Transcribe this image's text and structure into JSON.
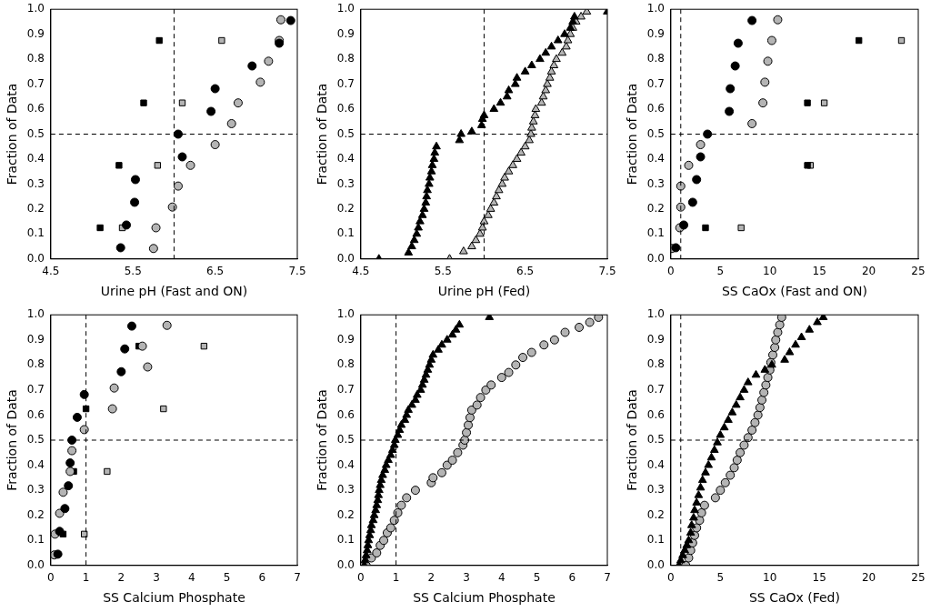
{
  "chart_data": [
    {
      "type": "scatter",
      "x_label": "Urine pH (Fast and ON)",
      "y_label": "Fraction of Data",
      "xlim": [
        4.5,
        7.5
      ],
      "xticks": [
        4.5,
        5.5,
        6.5,
        7.5
      ],
      "ylim": [
        0,
        1
      ],
      "yticks": [
        {
          "value": 0,
          "label": "0.0"
        },
        0.1,
        0.2,
        0.3,
        0.4,
        0.5,
        0.6,
        0.7,
        0.8,
        0.9,
        {
          "value": 1,
          "label": "1.0"
        }
      ],
      "grid": false,
      "reference_lines": [
        {
          "axis": "x",
          "value": 6,
          "line_style": "dashed"
        },
        {
          "axis": "y",
          "value": 0.5,
          "line_style": "dashed"
        }
      ],
      "series": [
        {
          "color": "#000000",
          "marker": "circle",
          "x": [
            5.35,
            5.42,
            5.52,
            5.53,
            6.1,
            6.05,
            6.45,
            6.5,
            6.95,
            7.28,
            7.42
          ],
          "values": [
            0.045,
            0.136,
            0.227,
            0.318,
            0.409,
            0.5,
            0.591,
            0.682,
            0.773,
            0.864,
            0.955
          ]
        },
        {
          "color": "#b4b4b4",
          "marker": "circle",
          "x": [
            5.75,
            5.78,
            5.98,
            6.05,
            6.2,
            6.5,
            6.7,
            6.78,
            7.05,
            7.15,
            7.28,
            7.3
          ],
          "values": [
            0.042,
            0.125,
            0.208,
            0.292,
            0.375,
            0.458,
            0.542,
            0.625,
            0.708,
            0.792,
            0.875,
            0.958
          ]
        },
        {
          "color": "#000000",
          "marker": "square",
          "x": [
            5.1,
            5.33,
            5.63,
            5.82
          ],
          "values": [
            0.125,
            0.375,
            0.625,
            0.875
          ]
        },
        {
          "color": "#b4b4b4",
          "marker": "square",
          "x": [
            5.37,
            5.8,
            6.1,
            6.58
          ],
          "values": [
            0.125,
            0.375,
            0.625,
            0.875
          ]
        }
      ]
    },
    {
      "type": "scatter",
      "x_label": "Urine pH (Fed)",
      "y_label": "Fraction of Data",
      "xlim": [
        4.5,
        7.5
      ],
      "xticks": [
        4.5,
        5.5,
        6.5,
        7.5
      ],
      "ylim": [
        0,
        1
      ],
      "yticks": [
        {
          "value": 0,
          "label": "0.0"
        },
        0.1,
        0.2,
        0.3,
        0.4,
        0.5,
        0.6,
        0.7,
        0.8,
        0.9,
        {
          "value": 1,
          "label": "1.0"
        }
      ],
      "grid": false,
      "reference_lines": [
        {
          "axis": "x",
          "value": 6,
          "line_style": "dashed"
        },
        {
          "axis": "y",
          "value": 0.5,
          "line_style": "dashed"
        }
      ],
      "series": [
        {
          "color": "#000000",
          "marker": "triangle",
          "x": [
            4.72,
            5.08,
            5.12,
            5.15,
            5.18,
            5.2,
            5.22,
            5.25,
            5.27,
            5.29,
            5.3,
            5.31,
            5.33,
            5.34,
            5.36,
            5.37,
            5.39,
            5.4,
            5.42,
            5.7,
            5.72,
            5.85,
            5.97,
            5.98,
            6.0,
            6.12,
            6.2,
            6.28,
            6.3,
            6.38,
            6.4,
            6.5,
            6.58,
            6.68,
            6.75,
            6.82,
            6.9,
            6.98,
            7.05,
            7.08,
            7.1,
            7.5
          ],
          "values": [
            0.0,
            0.025,
            0.05,
            0.075,
            0.1,
            0.125,
            0.15,
            0.175,
            0.2,
            0.225,
            0.25,
            0.275,
            0.3,
            0.325,
            0.35,
            0.375,
            0.4,
            0.425,
            0.45,
            0.475,
            0.5,
            0.51,
            0.535,
            0.56,
            0.575,
            0.6,
            0.625,
            0.65,
            0.675,
            0.7,
            0.725,
            0.75,
            0.775,
            0.8,
            0.825,
            0.85,
            0.875,
            0.9,
            0.925,
            0.95,
            0.97,
            0.99
          ]
        },
        {
          "color": "#b4b4b4",
          "marker": "triangle",
          "x": [
            5.58,
            5.75,
            5.85,
            5.9,
            5.95,
            5.98,
            6.0,
            6.05,
            6.08,
            6.12,
            6.15,
            6.18,
            6.22,
            6.25,
            6.3,
            6.35,
            6.4,
            6.45,
            6.5,
            6.55,
            6.57,
            6.58,
            6.6,
            6.62,
            6.63,
            6.7,
            6.72,
            6.75,
            6.77,
            6.8,
            6.82,
            6.85,
            6.88,
            6.95,
            7.0,
            7.02,
            7.05,
            7.08,
            7.12,
            7.18,
            7.25
          ],
          "values": [
            0.0,
            0.03,
            0.05,
            0.075,
            0.1,
            0.125,
            0.15,
            0.175,
            0.2,
            0.225,
            0.25,
            0.275,
            0.3,
            0.325,
            0.35,
            0.375,
            0.4,
            0.425,
            0.45,
            0.475,
            0.5,
            0.525,
            0.55,
            0.575,
            0.6,
            0.625,
            0.65,
            0.675,
            0.7,
            0.725,
            0.75,
            0.775,
            0.8,
            0.825,
            0.85,
            0.875,
            0.9,
            0.925,
            0.95,
            0.97,
            0.99
          ]
        }
      ]
    },
    {
      "type": "scatter",
      "x_label": "SS CaOx (Fast and ON)",
      "y_label": "Fraction of Data",
      "xlim": [
        0,
        25
      ],
      "xticks": [
        0,
        5,
        10,
        15,
        20,
        25
      ],
      "ylim": [
        0,
        1
      ],
      "yticks": [
        {
          "value": 0,
          "label": "0.0"
        },
        0.1,
        0.2,
        0.3,
        0.4,
        0.5,
        0.6,
        0.7,
        0.8,
        0.9,
        {
          "value": 1,
          "label": "1.0"
        }
      ],
      "grid": false,
      "reference_lines": [
        {
          "axis": "x",
          "value": 1,
          "line_style": "dashed"
        },
        {
          "axis": "y",
          "value": 0.5,
          "line_style": "dashed"
        }
      ],
      "series": [
        {
          "color": "#000000",
          "marker": "circle",
          "x": [
            0.5,
            1.3,
            2.2,
            2.6,
            3.0,
            3.7,
            5.9,
            6.0,
            6.5,
            6.8,
            8.2
          ],
          "values": [
            0.045,
            0.136,
            0.227,
            0.318,
            0.409,
            0.5,
            0.591,
            0.682,
            0.773,
            0.864,
            0.955
          ]
        },
        {
          "color": "#b4b4b4",
          "marker": "circle",
          "x": [
            0.1,
            0.9,
            1.0,
            1.0,
            1.8,
            3.0,
            8.2,
            9.3,
            9.5,
            9.8,
            10.2,
            10.8
          ],
          "values": [
            0.042,
            0.125,
            0.208,
            0.292,
            0.375,
            0.458,
            0.542,
            0.625,
            0.708,
            0.792,
            0.875,
            0.958
          ]
        },
        {
          "color": "#000000",
          "marker": "square",
          "x": [
            3.5,
            13.8,
            13.8,
            19.0
          ],
          "values": [
            0.125,
            0.375,
            0.625,
            0.875
          ]
        },
        {
          "color": "#b4b4b4",
          "marker": "square",
          "x": [
            7.1,
            14.1,
            15.5,
            23.3
          ],
          "values": [
            0.125,
            0.375,
            0.625,
            0.875
          ]
        }
      ]
    },
    {
      "type": "scatter",
      "x_label": "SS Calcium Phosphate",
      "y_label": "Fraction of Data",
      "xlim": [
        0,
        7
      ],
      "xticks": [
        0,
        1,
        2,
        3,
        4,
        5,
        6,
        7
      ],
      "ylim": [
        0,
        1
      ],
      "yticks": [
        {
          "value": 0,
          "label": "0.0"
        },
        0.1,
        0.2,
        0.3,
        0.4,
        0.5,
        0.6,
        0.7,
        0.8,
        0.9,
        {
          "value": 1,
          "label": "1.0"
        }
      ],
      "grid": false,
      "reference_lines": [
        {
          "axis": "x",
          "value": 1,
          "line_style": "dashed"
        },
        {
          "axis": "y",
          "value": 0.5,
          "line_style": "dashed"
        }
      ],
      "series": [
        {
          "color": "#000000",
          "marker": "circle",
          "x": [
            0.2,
            0.25,
            0.4,
            0.5,
            0.55,
            0.6,
            0.75,
            0.95,
            2.0,
            2.1,
            2.3
          ],
          "values": [
            0.045,
            0.136,
            0.227,
            0.318,
            0.409,
            0.5,
            0.591,
            0.682,
            0.773,
            0.864,
            0.955
          ]
        },
        {
          "color": "#b4b4b4",
          "marker": "circle",
          "x": [
            0.1,
            0.12,
            0.25,
            0.35,
            0.55,
            0.6,
            0.95,
            1.75,
            1.8,
            2.75,
            2.6,
            3.3
          ],
          "values": [
            0.042,
            0.125,
            0.208,
            0.292,
            0.375,
            0.458,
            0.542,
            0.625,
            0.708,
            0.792,
            0.875,
            0.958
          ]
        },
        {
          "color": "#000000",
          "marker": "square",
          "x": [
            0.35,
            0.65,
            1.0,
            2.5
          ],
          "values": [
            0.125,
            0.375,
            0.625,
            0.875
          ]
        },
        {
          "color": "#b4b4b4",
          "marker": "square",
          "x": [
            0.95,
            1.6,
            3.2,
            4.35
          ],
          "values": [
            0.125,
            0.375,
            0.625,
            0.875
          ]
        }
      ]
    },
    {
      "type": "scatter",
      "x_label": "SS Calcium Phosphate",
      "y_label": "Fraction of Data",
      "xlim": [
        0,
        7
      ],
      "xticks": [
        0,
        1,
        2,
        3,
        4,
        5,
        6,
        7
      ],
      "ylim": [
        0,
        1
      ],
      "yticks": [
        {
          "value": 0,
          "label": "0.0"
        },
        0.1,
        0.2,
        0.3,
        0.4,
        0.5,
        0.6,
        0.7,
        0.8,
        0.9,
        {
          "value": 1,
          "label": "1.0"
        }
      ],
      "grid": false,
      "reference_lines": [
        {
          "axis": "x",
          "value": 1,
          "line_style": "dashed"
        },
        {
          "axis": "y",
          "value": 0.5,
          "line_style": "dashed"
        }
      ],
      "series": [
        {
          "color": "#000000",
          "marker": "triangle",
          "x": [
            0.1,
            0.12,
            0.15,
            0.18,
            0.2,
            0.22,
            0.25,
            0.28,
            0.3,
            0.35,
            0.38,
            0.42,
            0.45,
            0.48,
            0.5,
            0.52,
            0.55,
            0.58,
            0.62,
            0.68,
            0.72,
            0.78,
            0.85,
            0.9,
            0.95,
            0.98,
            1.05,
            1.1,
            1.15,
            1.25,
            1.3,
            1.35,
            1.45,
            1.55,
            1.6,
            1.7,
            1.75,
            1.8,
            1.85,
            1.9,
            1.95,
            2.0,
            2.05,
            2.2,
            2.3,
            2.45,
            2.6,
            2.7,
            2.8,
            3.65
          ],
          "values": [
            0.0,
            0.02,
            0.04,
            0.06,
            0.08,
            0.1,
            0.12,
            0.14,
            0.16,
            0.18,
            0.2,
            0.22,
            0.24,
            0.26,
            0.28,
            0.3,
            0.32,
            0.34,
            0.36,
            0.38,
            0.4,
            0.42,
            0.44,
            0.46,
            0.48,
            0.5,
            0.52,
            0.54,
            0.56,
            0.58,
            0.6,
            0.62,
            0.64,
            0.66,
            0.68,
            0.7,
            0.72,
            0.74,
            0.76,
            0.78,
            0.8,
            0.82,
            0.84,
            0.86,
            0.88,
            0.9,
            0.92,
            0.94,
            0.96,
            0.99
          ]
        },
        {
          "color": "#b4b4b4",
          "marker": "circle",
          "x": [
            0.15,
            0.3,
            0.45,
            0.55,
            0.65,
            0.75,
            0.85,
            0.95,
            1.05,
            1.15,
            1.3,
            1.55,
            2.0,
            2.05,
            2.3,
            2.45,
            2.6,
            2.75,
            2.9,
            2.95,
            3.0,
            3.05,
            3.1,
            3.15,
            3.3,
            3.4,
            3.55,
            3.7,
            4.0,
            4.2,
            4.4,
            4.6,
            4.85,
            5.2,
            5.5,
            5.8,
            6.2,
            6.5,
            6.75
          ],
          "values": [
            0.0,
            0.03,
            0.05,
            0.08,
            0.1,
            0.13,
            0.15,
            0.18,
            0.21,
            0.24,
            0.27,
            0.3,
            0.33,
            0.35,
            0.37,
            0.4,
            0.42,
            0.45,
            0.48,
            0.5,
            0.53,
            0.56,
            0.59,
            0.62,
            0.64,
            0.67,
            0.7,
            0.72,
            0.75,
            0.77,
            0.8,
            0.83,
            0.85,
            0.88,
            0.9,
            0.93,
            0.95,
            0.97,
            0.99
          ]
        }
      ]
    },
    {
      "type": "scatter",
      "x_label": "SS CaOx (Fed)",
      "y_label": "Fraction of Data",
      "xlim": [
        0,
        25
      ],
      "xticks": [
        0,
        5,
        10,
        15,
        20,
        25
      ],
      "ylim": [
        0,
        1
      ],
      "yticks": [
        {
          "value": 0,
          "label": "0.0"
        },
        0.1,
        0.2,
        0.3,
        0.4,
        0.5,
        0.6,
        0.7,
        0.8,
        0.9,
        {
          "value": 1,
          "label": "1.0"
        }
      ],
      "grid": false,
      "reference_lines": [
        {
          "axis": "x",
          "value": 1,
          "line_style": "dashed"
        },
        {
          "axis": "y",
          "value": 0.5,
          "line_style": "dashed"
        }
      ],
      "series": [
        {
          "color": "#000000",
          "marker": "triangle",
          "x": [
            0.8,
            1.0,
            1.2,
            1.4,
            1.6,
            1.8,
            2.0,
            2.1,
            2.3,
            2.4,
            2.6,
            2.8,
            3.0,
            3.2,
            3.5,
            3.8,
            4.1,
            4.4,
            4.7,
            5.0,
            5.4,
            5.8,
            6.2,
            6.6,
            7.0,
            7.4,
            7.8,
            8.6,
            9.5,
            10.2,
            11.5,
            12.0,
            12.6,
            13.2,
            14.0,
            14.8,
            15.4
          ],
          "values": [
            0.0,
            0.02,
            0.04,
            0.06,
            0.08,
            0.1,
            0.13,
            0.16,
            0.19,
            0.22,
            0.25,
            0.28,
            0.31,
            0.34,
            0.37,
            0.4,
            0.43,
            0.46,
            0.49,
            0.52,
            0.55,
            0.58,
            0.61,
            0.64,
            0.67,
            0.7,
            0.73,
            0.76,
            0.78,
            0.8,
            0.82,
            0.85,
            0.88,
            0.91,
            0.94,
            0.97,
            0.99
          ]
        },
        {
          "color": "#b4b4b4",
          "marker": "circle",
          "x": [
            1.5,
            1.8,
            2.0,
            2.2,
            2.4,
            2.6,
            2.9,
            3.1,
            3.4,
            4.5,
            5.0,
            5.5,
            6.0,
            6.4,
            6.7,
            7.0,
            7.4,
            7.8,
            8.2,
            8.5,
            8.8,
            9.0,
            9.2,
            9.4,
            9.6,
            9.8,
            10.0,
            10.1,
            10.3,
            10.5,
            10.6,
            10.8,
            11.0,
            11.2
          ],
          "values": [
            0.0,
            0.03,
            0.06,
            0.09,
            0.12,
            0.15,
            0.18,
            0.21,
            0.24,
            0.27,
            0.3,
            0.33,
            0.36,
            0.39,
            0.42,
            0.45,
            0.48,
            0.51,
            0.54,
            0.57,
            0.6,
            0.63,
            0.66,
            0.69,
            0.72,
            0.75,
            0.78,
            0.81,
            0.84,
            0.87,
            0.9,
            0.93,
            0.96,
            0.99
          ]
        }
      ]
    }
  ]
}
